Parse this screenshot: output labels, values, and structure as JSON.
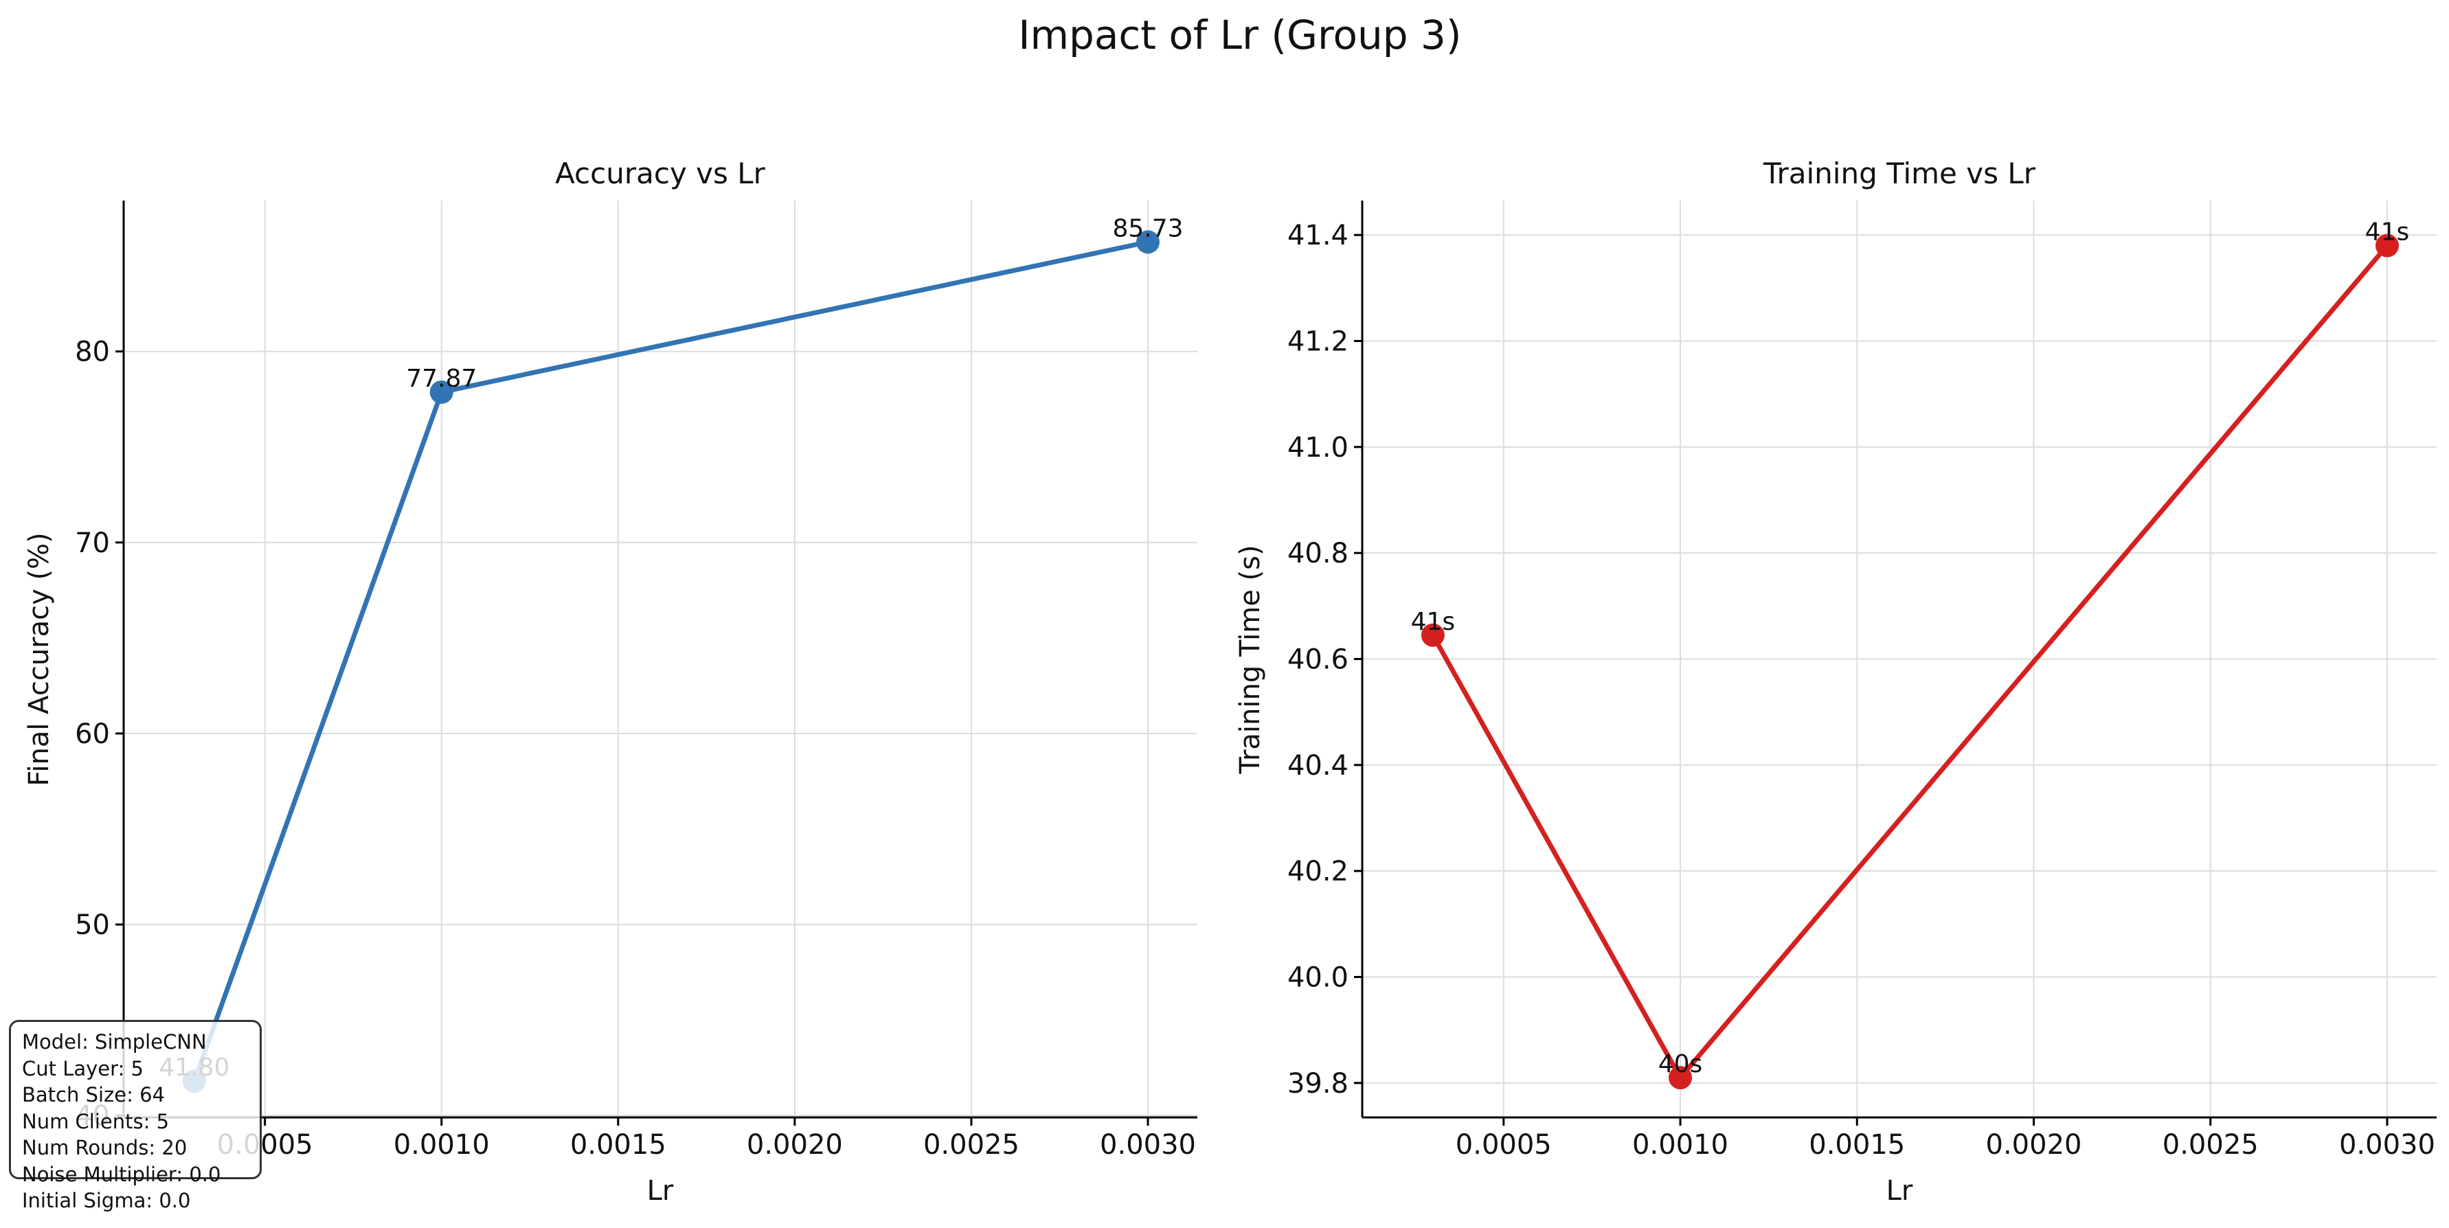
{
  "figure": {
    "title": "Impact of Lr (Group 3)"
  },
  "chart_data": [
    {
      "type": "line",
      "title": "Accuracy vs Lr",
      "xlabel": "Lr",
      "ylabel": "Final Accuracy (%)",
      "x": [
        0.0003,
        0.001,
        0.003
      ],
      "values": [
        41.8,
        77.87,
        85.73
      ],
      "point_labels": [
        "41.80",
        "77.87",
        "85.73"
      ],
      "xlim": [
        0.0001,
        0.00314
      ],
      "ylim": [
        39.9,
        87.9
      ],
      "xticks": [
        0.0005,
        0.001,
        0.0015,
        0.002,
        0.0025,
        0.003
      ],
      "xtick_labels": [
        "0.0005",
        "0.0010",
        "0.0015",
        "0.0020",
        "0.0025",
        "0.0030"
      ],
      "yticks": [
        40,
        50,
        60,
        70,
        80
      ],
      "ytick_labels": [
        "40",
        "50",
        "60",
        "70",
        "80"
      ],
      "color": "#3274b3",
      "grid": true
    },
    {
      "type": "line",
      "title": "Training Time vs Lr",
      "xlabel": "Lr",
      "ylabel": "Training Time (s)",
      "x": [
        0.0003,
        0.001,
        0.003
      ],
      "values": [
        40.645,
        39.81,
        41.38
      ],
      "point_labels": [
        "41s",
        "40s",
        "41s"
      ],
      "xlim": [
        0.0001,
        0.00314
      ],
      "ylim": [
        39.735,
        41.465
      ],
      "xticks": [
        0.0005,
        0.001,
        0.0015,
        0.002,
        0.0025,
        0.003
      ],
      "xtick_labels": [
        "0.0005",
        "0.0010",
        "0.0015",
        "0.0020",
        "0.0025",
        "0.0030"
      ],
      "yticks": [
        39.8,
        40.0,
        40.2,
        40.4,
        40.6,
        40.8,
        41.0,
        41.2,
        41.4
      ],
      "ytick_labels": [
        "39.8",
        "40.0",
        "40.2",
        "40.4",
        "40.6",
        "40.8",
        "41.0",
        "41.2",
        "41.4"
      ],
      "color": "#d62020",
      "grid": true
    }
  ],
  "info_box": {
    "lines": [
      "Model: SimpleCNN",
      "Cut Layer: 5",
      "Batch Size: 64",
      "Num Clients: 5",
      "Num Rounds: 20",
      "Noise Multiplier: 0.0",
      "Initial Sigma: 0.0"
    ]
  }
}
